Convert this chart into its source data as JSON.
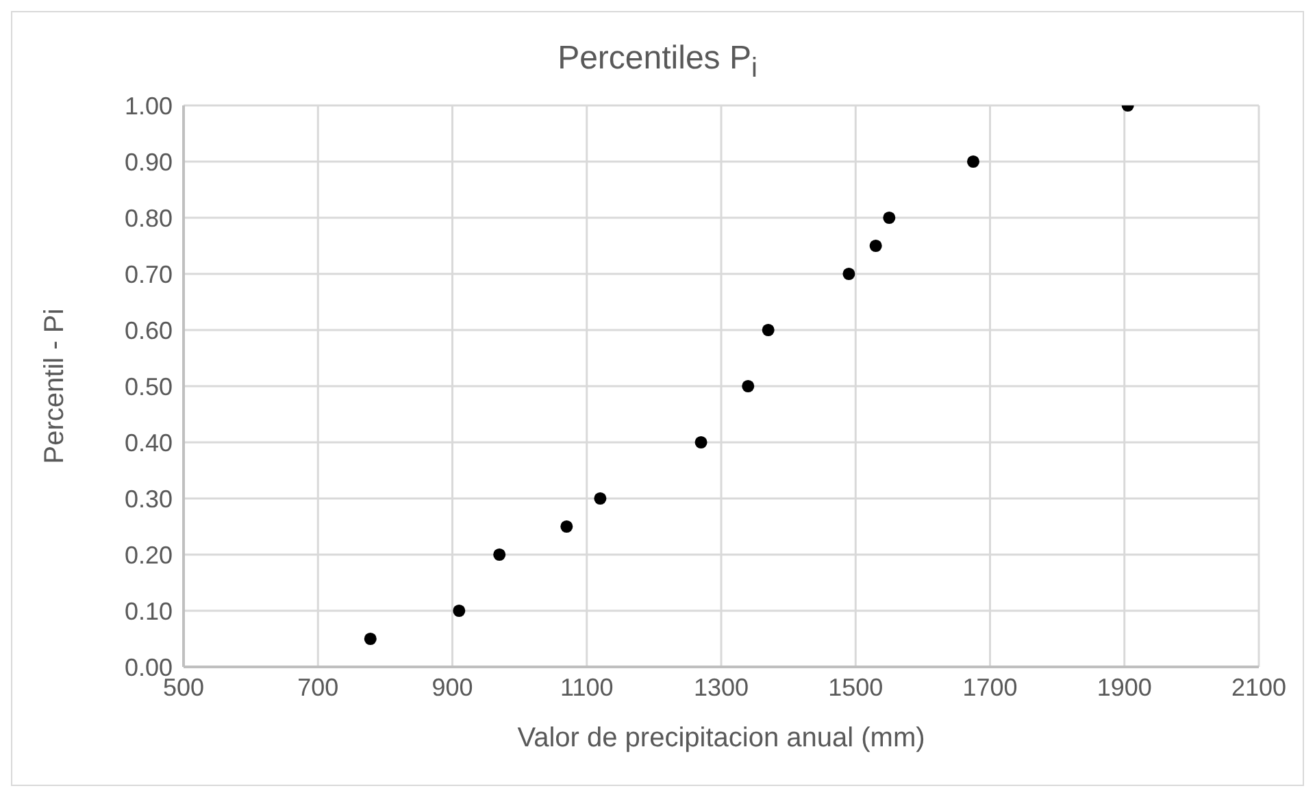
{
  "chart_data": {
    "type": "scatter",
    "title": "Percentiles P$_{i}$",
    "xlabel": "Valor de precipitacion anual (mm)",
    "ylabel": "Percentil - Pi",
    "x": [
      778,
      910,
      970,
      1070,
      1120,
      1270,
      1340,
      1370,
      1490,
      1530,
      1550,
      1675,
      1905
    ],
    "series": [
      {
        "color": "#000000",
        "values": [
          0.05,
          0.1,
          0.2,
          0.25,
          0.3,
          0.4,
          0.5,
          0.6,
          0.7,
          0.75,
          0.8,
          0.9,
          1.0
        ]
      }
    ],
    "xlim": [
      500,
      2100
    ],
    "xticks": [
      500,
      700,
      900,
      1100,
      1300,
      1500,
      1700,
      1900,
      2100
    ],
    "ylim": [
      0,
      1
    ],
    "yticks": [
      {
        "value": 0,
        "label": "0.00"
      },
      {
        "value": 0.1,
        "label": "0.10"
      },
      {
        "value": 0.2,
        "label": "0.20"
      },
      {
        "value": 0.3,
        "label": "0.30"
      },
      {
        "value": 0.4,
        "label": "0.40"
      },
      {
        "value": 0.5,
        "label": "0.50"
      },
      {
        "value": 0.6,
        "label": "0.60"
      },
      {
        "value": 0.7,
        "label": "0.70"
      },
      {
        "value": 0.8,
        "label": "0.80"
      },
      {
        "value": 0.9,
        "label": "0.90"
      },
      {
        "value": 1,
        "label": "1.00"
      }
    ],
    "grid": true,
    "legend": false,
    "marker": "circle"
  }
}
